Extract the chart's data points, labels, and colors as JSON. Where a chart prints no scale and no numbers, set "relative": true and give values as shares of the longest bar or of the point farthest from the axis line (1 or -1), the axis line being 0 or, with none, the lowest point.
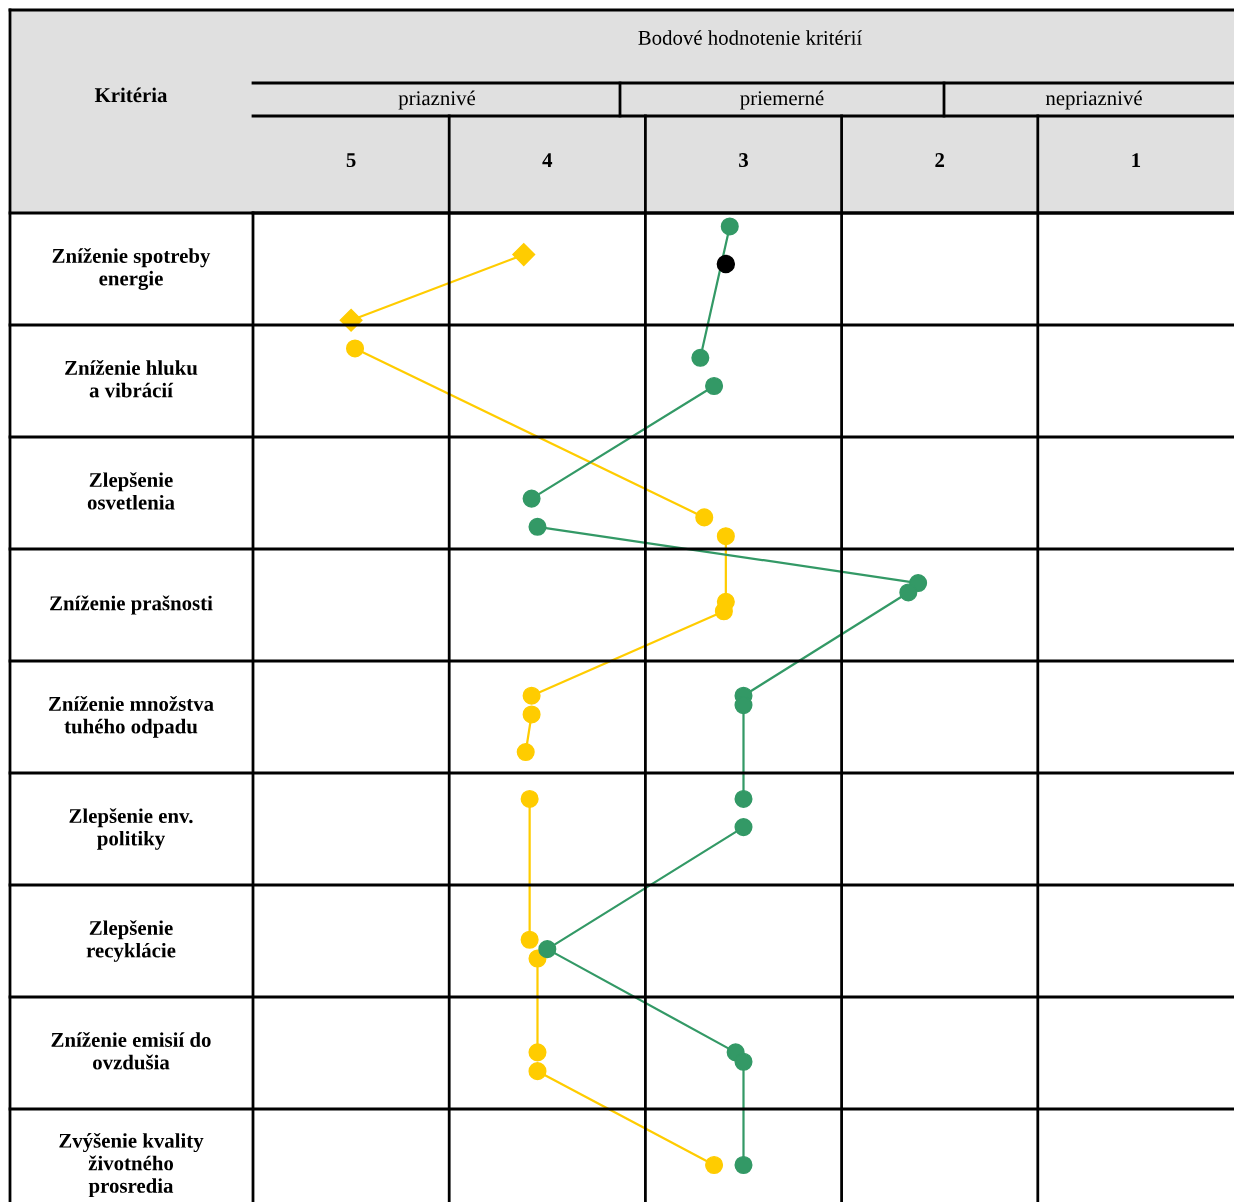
{
  "chart_data": {
    "type": "line",
    "title": "Bodové hodnotenie kritérií",
    "ylabel": "Kritéria",
    "annotations": [
      "priaznivé",
      "priemerné",
      "nepriaznivé",
      "Zníženie spotreby\nenergie",
      "Zníženie hluku\na vibrácií",
      "Zlepšenie\nosvetlenia",
      "Zníženie prašnosti",
      "Zníženie množstva\ntuhého odpadu",
      "Zlepšenie env.\npolitiky",
      "Zlepšenie\nrecyklácie",
      "Zníženie emisií do\novzdušia",
      "Zvýšenie kvality\nživotného\nprosredia"
    ],
    "xlim": [
      5.5,
      0.5
    ],
    "xticks": [
      5,
      4,
      3,
      2,
      1
    ],
    "relative": true,
    "series": [
      {
        "color": "#ffcc00",
        "marker": "diamond",
        "x": [
          4.12,
          5.0
        ],
        "values": [
          0.97,
          0.9
        ]
      },
      {
        "color": "#ffcc00",
        "marker": "circle",
        "x": [
          4.98,
          3.2,
          null,
          3.09,
          3.09,
          null,
          3.1,
          4.08,
          null,
          4.08,
          4.11,
          null,
          4.09,
          4.09,
          null,
          4.05,
          4.05,
          null,
          4.05,
          3.15
        ],
        "values": [
          0.87,
          0.69,
          null,
          0.67,
          0.6,
          null,
          0.59,
          0.5,
          null,
          0.48,
          0.44,
          null,
          0.39,
          0.24,
          null,
          0.22,
          0.12,
          null,
          0.1,
          0
        ]
      },
      {
        "color": "#339966",
        "marker": "circle",
        "x": [
          3.07,
          3.22,
          null,
          3.15,
          4.08,
          null,
          4.05,
          2.11,
          null,
          2.16,
          3.0,
          null,
          3.0,
          3.0,
          null,
          3.0,
          4.0,
          3.04
        ],
        "values": [
          1.0,
          0.86,
          null,
          0.83,
          0.71,
          null,
          0.68,
          0.62,
          null,
          0.61,
          0.5,
          null,
          0.49,
          0.39,
          null,
          0.36,
          0.23,
          0.12
        ]
      },
      {
        "color": "#339966",
        "marker": "circle",
        "x": [
          3.0,
          3.0
        ],
        "values": [
          0.11,
          0
        ]
      },
      {
        "type": "scatter",
        "color": "#000000",
        "marker": "circle",
        "x": [
          3.09
        ],
        "values": [
          0.96
        ]
      }
    ]
  }
}
